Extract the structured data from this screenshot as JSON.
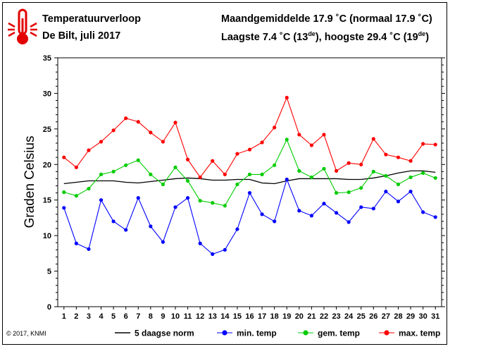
{
  "header": {
    "title": "Temperatuurverloop",
    "location": "De Bilt, juli 2017",
    "summary_line1": "Maandgemiddelde 17.9 ˚C (normaal 17.9 ˚C)",
    "summary_line2_prefix": "Laagste 7.4 ˚C (13",
    "summary_line2_sup1": "de",
    "summary_line2_mid": "), hoogste 29.4 ˚C (19",
    "summary_line2_sup2": "de",
    "summary_line2_suffix": ")",
    "icon": "thermometer-icon"
  },
  "copyright": "© 2017, KNMI",
  "colors": {
    "norm": "#000000",
    "min": "#0000ff",
    "mean": "#00cc00",
    "max": "#ff0000"
  },
  "chart_data": {
    "type": "line",
    "ylabel": "Graden Celsius",
    "xlabel": "",
    "ylim": [
      0,
      35
    ],
    "yticks": [
      0,
      5,
      10,
      15,
      20,
      25,
      30,
      35
    ],
    "x": [
      1,
      2,
      3,
      4,
      5,
      6,
      7,
      8,
      9,
      10,
      11,
      12,
      13,
      14,
      15,
      16,
      17,
      18,
      19,
      20,
      21,
      22,
      23,
      24,
      25,
      26,
      27,
      28,
      29,
      30,
      31
    ],
    "grid": false,
    "legend_position": "bottom",
    "series": [
      {
        "name": "5 daagse norm",
        "color": "#000000",
        "markers": false,
        "values": [
          17.3,
          17.5,
          17.7,
          17.7,
          17.7,
          17.5,
          17.4,
          17.6,
          17.8,
          18.0,
          18.1,
          18.0,
          17.8,
          17.8,
          17.9,
          17.9,
          17.4,
          17.3,
          17.7,
          18.0,
          18.0,
          18.0,
          18.0,
          17.9,
          17.9,
          18.1,
          18.4,
          18.8,
          19.1,
          19.1,
          18.9
        ]
      },
      {
        "name": "min. temp",
        "color": "#0000ff",
        "markers": true,
        "values": [
          13.9,
          8.9,
          8.1,
          15.0,
          12.0,
          10.8,
          15.3,
          11.3,
          9.1,
          14.0,
          15.3,
          8.9,
          7.4,
          8.0,
          10.9,
          16.0,
          13.0,
          12.0,
          17.9,
          13.5,
          12.8,
          14.5,
          13.2,
          11.9,
          14.0,
          13.8,
          16.2,
          14.8,
          16.2,
          13.3,
          12.6
        ]
      },
      {
        "name": "gem. temp",
        "color": "#00cc00",
        "markers": true,
        "values": [
          16.1,
          15.6,
          16.6,
          18.6,
          19.0,
          19.9,
          20.6,
          18.6,
          17.2,
          19.6,
          17.7,
          14.9,
          14.6,
          14.2,
          17.2,
          18.6,
          18.6,
          19.9,
          23.5,
          19.1,
          18.2,
          19.4,
          16.0,
          16.1,
          16.7,
          19.0,
          18.4,
          17.2,
          18.2,
          18.8,
          18.1
        ]
      },
      {
        "name": "max. temp",
        "color": "#ff0000",
        "markers": true,
        "values": [
          21.0,
          19.6,
          22.0,
          23.2,
          24.8,
          26.5,
          26.0,
          24.5,
          23.2,
          25.9,
          20.7,
          18.2,
          20.5,
          18.6,
          21.5,
          22.1,
          23.1,
          25.2,
          29.4,
          24.2,
          22.7,
          24.2,
          19.1,
          20.2,
          20.0,
          23.6,
          21.4,
          21.0,
          20.5,
          22.9,
          22.8
        ]
      }
    ]
  }
}
